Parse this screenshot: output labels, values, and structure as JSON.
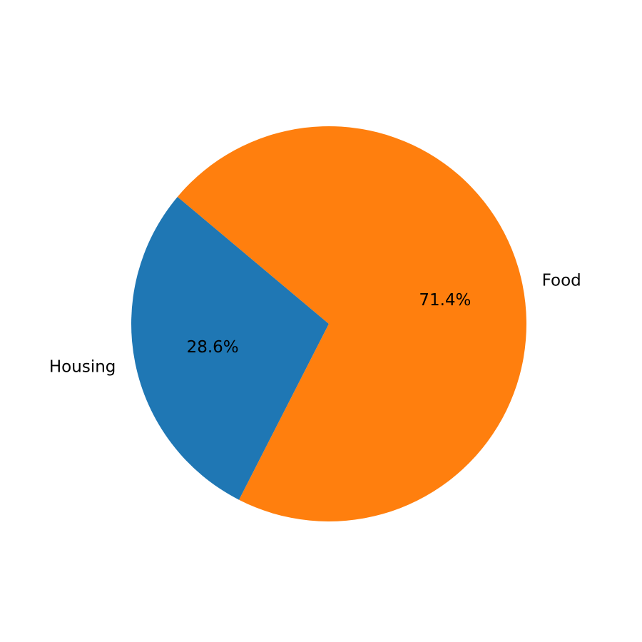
{
  "chart_data": {
    "type": "pie",
    "title": "",
    "start_angle_deg": 140,
    "direction": "counterclockwise",
    "slices": [
      {
        "label": "Housing",
        "value": 28.6,
        "pct_label": "28.6%",
        "color": "#1f77b4"
      },
      {
        "label": "Food",
        "value": 71.4,
        "pct_label": "71.4%",
        "color": "#ff7f0e"
      }
    ]
  }
}
